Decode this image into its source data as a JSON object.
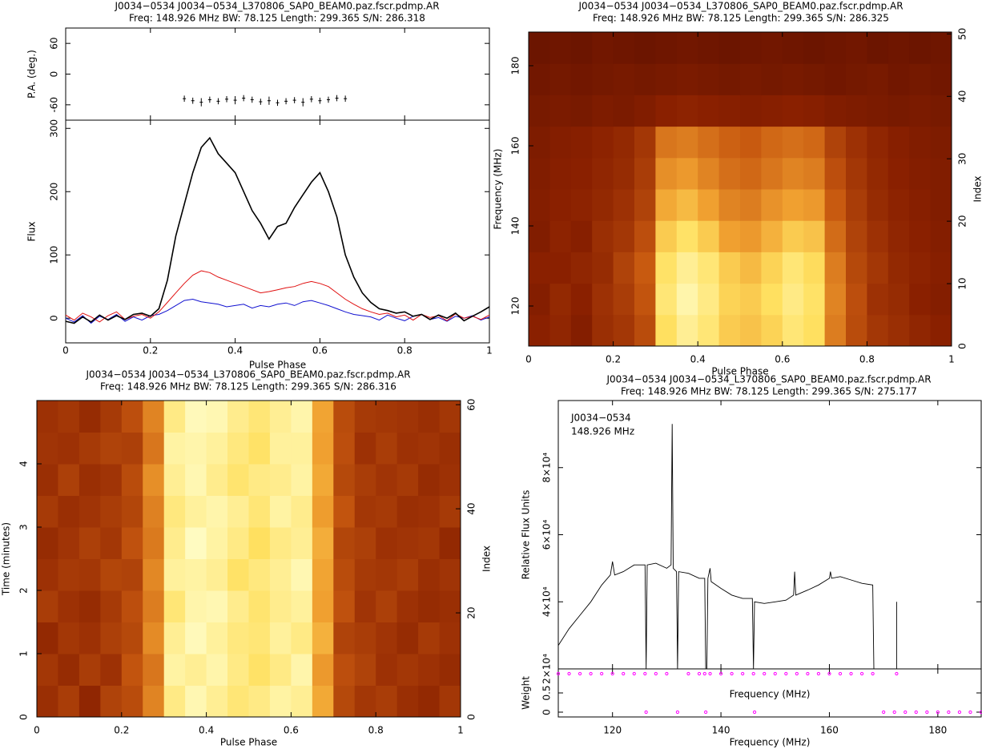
{
  "chart_data": [
    {
      "type": "profile",
      "title": "J0034−0534 J0034−0534_L370806_SAP0_BEAM0.paz.fscr.pdmp.AR",
      "subtitle": "Freq: 148.926 MHz BW: 78.125 Length: 299.365 S/N: 286.318",
      "xlabel": "Pulse Phase",
      "ylabel": "Flux",
      "xlim": [
        0,
        1
      ],
      "xticks": [
        0,
        0.2,
        0.4,
        0.6,
        0.8,
        1
      ],
      "ylim": [
        -39,
        313
      ],
      "yticks": [
        0,
        100,
        200,
        300
      ],
      "x": [
        0,
        0.02,
        0.04,
        0.06,
        0.08,
        0.1,
        0.12,
        0.14,
        0.16,
        0.18,
        0.2,
        0.22,
        0.24,
        0.26,
        0.28,
        0.3,
        0.32,
        0.34,
        0.36,
        0.38,
        0.4,
        0.42,
        0.44,
        0.46,
        0.48,
        0.5,
        0.52,
        0.54,
        0.56,
        0.58,
        0.6,
        0.62,
        0.64,
        0.66,
        0.68,
        0.7,
        0.72,
        0.74,
        0.76,
        0.78,
        0.8,
        0.82,
        0.84,
        0.86,
        0.88,
        0.9,
        0.92,
        0.94,
        0.96,
        0.98,
        1
      ],
      "series": [
        {
          "name": "Total intensity",
          "color": "#000000",
          "values": [
            -5,
            -8,
            2,
            -6,
            5,
            -3,
            4,
            -2,
            6,
            8,
            3,
            15,
            60,
            130,
            180,
            230,
            270,
            285,
            260,
            245,
            230,
            200,
            170,
            150,
            125,
            145,
            150,
            175,
            195,
            215,
            230,
            200,
            160,
            100,
            65,
            40,
            25,
            15,
            12,
            8,
            10,
            3,
            6,
            -2,
            5,
            0,
            8,
            -4,
            3,
            10,
            18
          ]
        },
        {
          "name": "Linear",
          "color": "#e01010",
          "values": [
            5,
            -3,
            8,
            2,
            -6,
            4,
            10,
            -2,
            3,
            6,
            0,
            10,
            25,
            40,
            55,
            68,
            75,
            72,
            65,
            60,
            55,
            50,
            45,
            40,
            42,
            45,
            48,
            50,
            55,
            58,
            55,
            50,
            40,
            30,
            22,
            15,
            10,
            6,
            8,
            2,
            5,
            -3,
            6,
            1,
            4,
            -4,
            7,
            0,
            3,
            -2,
            5
          ]
        },
        {
          "name": "Circular",
          "color": "#1010d0",
          "values": [
            0,
            -6,
            4,
            -8,
            3,
            -2,
            6,
            -5,
            2,
            -3,
            4,
            6,
            12,
            20,
            28,
            30,
            26,
            24,
            22,
            18,
            20,
            22,
            16,
            20,
            18,
            22,
            24,
            20,
            26,
            28,
            24,
            20,
            15,
            10,
            6,
            4,
            2,
            -3,
            5,
            0,
            -4,
            3,
            6,
            -2,
            1,
            -5,
            3,
            0,
            4,
            -3,
            2
          ]
        }
      ],
      "pa": {
        "ylabel": "P.A. (deg.)",
        "ylim": [
          -90,
          90
        ],
        "yticks": [
          -60,
          0,
          60
        ],
        "x": [
          0.28,
          0.3,
          0.32,
          0.34,
          0.36,
          0.38,
          0.4,
          0.42,
          0.44,
          0.46,
          0.48,
          0.5,
          0.52,
          0.54,
          0.56,
          0.58,
          0.6,
          0.62,
          0.64,
          0.66
        ],
        "values": [
          -48,
          -52,
          -55,
          -50,
          -53,
          -49,
          -51,
          -47,
          -50,
          -54,
          -52,
          -56,
          -53,
          -51,
          -55,
          -49,
          -52,
          -50,
          -47,
          -48
        ],
        "errors": [
          6,
          6,
          8,
          6,
          6,
          6,
          8,
          6,
          6,
          6,
          8,
          6,
          6,
          6,
          8,
          6,
          6,
          6,
          6,
          6
        ]
      }
    },
    {
      "type": "heatmap",
      "title": "J0034−0534 J0034−0534_L370806_SAP0_BEAM0.paz.fscr.pdmp.AR",
      "subtitle": "Freq: 148.926 MHz BW: 78.125 Length: 299.365 S/N: 286.325",
      "xlabel": "Pulse Phase",
      "ylabel": "Frequency (MHz)",
      "y2label": "Index",
      "xlim": [
        0,
        1
      ],
      "xticks": [
        0,
        0.2,
        0.4,
        0.6,
        0.8,
        1
      ],
      "ylim": [
        110,
        188.4
      ],
      "yticks": [
        120,
        140,
        160,
        180
      ],
      "y2lim": [
        0,
        50.3
      ],
      "y2ticks": [
        0,
        10,
        20,
        30,
        40,
        50
      ],
      "z": [
        [
          30,
          32,
          28,
          35,
          38,
          45,
          85,
          92,
          88,
          80,
          78,
          82,
          88,
          85,
          60,
          45,
          38,
          35,
          32,
          30
        ],
        [
          28,
          33,
          30,
          36,
          40,
          48,
          88,
          95,
          90,
          82,
          80,
          85,
          90,
          86,
          62,
          46,
          36,
          34,
          30,
          28
        ],
        [
          30,
          30,
          32,
          34,
          42,
          50,
          86,
          92,
          88,
          80,
          76,
          82,
          88,
          84,
          60,
          44,
          38,
          33,
          31,
          29
        ],
        [
          27,
          31,
          29,
          35,
          38,
          46,
          80,
          86,
          80,
          70,
          68,
          74,
          80,
          78,
          55,
          42,
          36,
          32,
          30,
          28
        ],
        [
          28,
          30,
          31,
          33,
          36,
          42,
          72,
          76,
          70,
          62,
          60,
          66,
          70,
          68,
          50,
          40,
          34,
          31,
          29,
          27
        ],
        [
          27,
          29,
          30,
          32,
          34,
          40,
          65,
          68,
          62,
          56,
          54,
          58,
          62,
          60,
          46,
          38,
          33,
          30,
          28,
          27
        ],
        [
          26,
          28,
          29,
          31,
          33,
          38,
          58,
          60,
          56,
          52,
          50,
          54,
          56,
          54,
          42,
          36,
          32,
          29,
          27,
          26
        ],
        [
          24,
          25,
          24,
          26,
          25,
          27,
          30,
          31,
          30,
          29,
          28,
          29,
          30,
          29,
          27,
          26,
          25,
          24,
          25,
          24
        ],
        [
          22,
          23,
          22,
          23,
          24,
          23,
          24,
          25,
          24,
          23,
          24,
          23,
          24,
          23,
          22,
          23,
          24,
          22,
          23,
          22
        ],
        [
          20,
          21,
          20,
          22,
          21,
          20,
          21,
          22,
          21,
          20,
          21,
          22,
          21,
          20,
          21,
          22,
          20,
          21,
          20,
          21
        ]
      ]
    },
    {
      "type": "heatmap",
      "title": "J0034−0534 J0034−0534_L370806_SAP0_BEAM0.paz.fscr.pdmp.AR",
      "subtitle": "Freq: 148.926 MHz BW: 78.125 Length: 299.365 S/N: 286.316",
      "xlabel": "Pulse Phase",
      "ylabel": "Time (minutes)",
      "y2label": "Index",
      "xlim": [
        0,
        1
      ],
      "xticks": [
        0,
        0.2,
        0.4,
        0.6,
        0.8,
        1
      ],
      "ylim": [
        0,
        5
      ],
      "yticks": [
        0,
        1,
        2,
        3,
        4
      ],
      "y2lim": [
        0,
        60.8
      ],
      "y2ticks": [
        0,
        20,
        40,
        60
      ],
      "z": [
        [
          35,
          40,
          32,
          42,
          45,
          62,
          90,
          96,
          92,
          88,
          90,
          94,
          92,
          72,
          44,
          38,
          40,
          35,
          33,
          38
        ],
        [
          38,
          34,
          40,
          36,
          48,
          58,
          94,
          92,
          95,
          90,
          86,
          90,
          95,
          68,
          46,
          42,
          36,
          38,
          36,
          34
        ],
        [
          33,
          38,
          36,
          41,
          44,
          64,
          92,
          97,
          93,
          89,
          88,
          93,
          90,
          74,
          42,
          40,
          37,
          34,
          39,
          36
        ],
        [
          40,
          36,
          34,
          39,
          46,
          60,
          88,
          95,
          96,
          91,
          87,
          91,
          93,
          70,
          47,
          37,
          41,
          36,
          34,
          35
        ],
        [
          36,
          39,
          38,
          43,
          42,
          63,
          93,
          94,
          92,
          86,
          89,
          92,
          96,
          71,
          45,
          39,
          38,
          40,
          35,
          37
        ],
        [
          34,
          37,
          41,
          38,
          47,
          59,
          91,
          98,
          94,
          90,
          85,
          90,
          92,
          73,
          43,
          41,
          36,
          37,
          38,
          33
        ],
        [
          39,
          35,
          37,
          40,
          43,
          61,
          89,
          93,
          95,
          92,
          88,
          94,
          91,
          69,
          48,
          38,
          39,
          35,
          36,
          39
        ],
        [
          35,
          41,
          35,
          37,
          45,
          65,
          92,
          96,
          91,
          87,
          90,
          91,
          94,
          72,
          44,
          40,
          37,
          39,
          34,
          36
        ],
        [
          37,
          36,
          39,
          42,
          41,
          58,
          94,
          95,
          93,
          89,
          86,
          93,
          93,
          70,
          46,
          36,
          40,
          36,
          37,
          35
        ],
        [
          36,
          38,
          34,
          39,
          46,
          62,
          90,
          97,
          96,
          91,
          88,
          92,
          95,
          71,
          45,
          39,
          38,
          37,
          35,
          38
        ]
      ]
    },
    {
      "type": "spectrum",
      "title": "J0034−0534 J0034−0534_L370806_SAP0_BEAM0.paz.fscr.pdmp.AR",
      "subtitle": "Freq: 148.926 MHz BW: 78.125 Length: 299.365 S/N: 275.177",
      "annotations": [
        "J0034−0534",
        "148.926 MHz"
      ],
      "xlabel": "Frequency (MHz)",
      "ylabel": "Relative Flux Units",
      "xlim": [
        110,
        188
      ],
      "xticks": [
        120,
        140,
        160,
        180
      ],
      "ylim": [
        20000,
        100000
      ],
      "yticks": [
        {
          "value": 20000,
          "label": "2×10⁴"
        },
        {
          "value": 40000,
          "label": "4×10⁴"
        },
        {
          "value": 60000,
          "label": "6×10⁴"
        },
        {
          "value": 80000,
          "label": "8×10⁴"
        }
      ],
      "color": "#000000",
      "x": [
        110,
        112,
        114,
        116,
        118,
        119.6,
        120,
        120.4,
        122,
        124,
        126,
        126.2,
        126.4,
        128,
        130,
        130.8,
        131,
        131.2,
        131.8,
        132,
        132.2,
        134,
        136,
        137,
        137.2,
        137.4,
        137.6,
        138,
        138.2,
        140,
        142,
        144,
        145.8,
        146,
        146.2,
        148,
        150,
        152,
        153.4,
        153.6,
        153.8,
        156,
        158,
        160,
        160.2,
        160.4,
        162,
        164,
        166,
        168,
        168.2,
        170,
        172.4,
        172.4
      ],
      "values": [
        27000,
        32000,
        36000,
        40000,
        45000,
        48000,
        52000,
        48000,
        49000,
        51000,
        51000,
        20000,
        51000,
        51500,
        50000,
        51000,
        93000,
        50000,
        49000,
        20000,
        49000,
        48500,
        47000,
        47000,
        20000,
        20000,
        47000,
        50000,
        46000,
        44000,
        42000,
        41000,
        41000,
        20000,
        40000,
        39500,
        40000,
        40500,
        42000,
        49000,
        42000,
        43500,
        45000,
        47000,
        49000,
        47000,
        47500,
        46500,
        45500,
        45000,
        20000,
        null,
        20000,
        40000
      ],
      "weight": {
        "ylabel": "Weight",
        "ylim": [
          -0.125,
          1.125
        ],
        "yticks": [
          0,
          0.5
        ],
        "color": "#ff00ff",
        "x": [
          110,
          112,
          114,
          116,
          118,
          120,
          122,
          124,
          126,
          126.2,
          128,
          130,
          132,
          134,
          136,
          137,
          137.2,
          138,
          140,
          142,
          144,
          146,
          146.2,
          148,
          150,
          152,
          154,
          156,
          158,
          160,
          162,
          164,
          166,
          168,
          170,
          172,
          172.4,
          174,
          176,
          178,
          180,
          182,
          184,
          186,
          188
        ],
        "values": [
          1,
          1,
          1,
          1,
          1,
          1,
          1,
          1,
          1,
          0,
          1,
          1,
          0,
          1,
          1,
          1,
          0,
          1,
          1,
          1,
          1,
          1,
          0,
          1,
          1,
          1,
          1,
          1,
          1,
          1,
          1,
          1,
          1,
          1,
          0,
          0,
          1,
          0,
          0,
          0,
          0,
          0,
          0,
          0,
          0
        ]
      }
    }
  ]
}
